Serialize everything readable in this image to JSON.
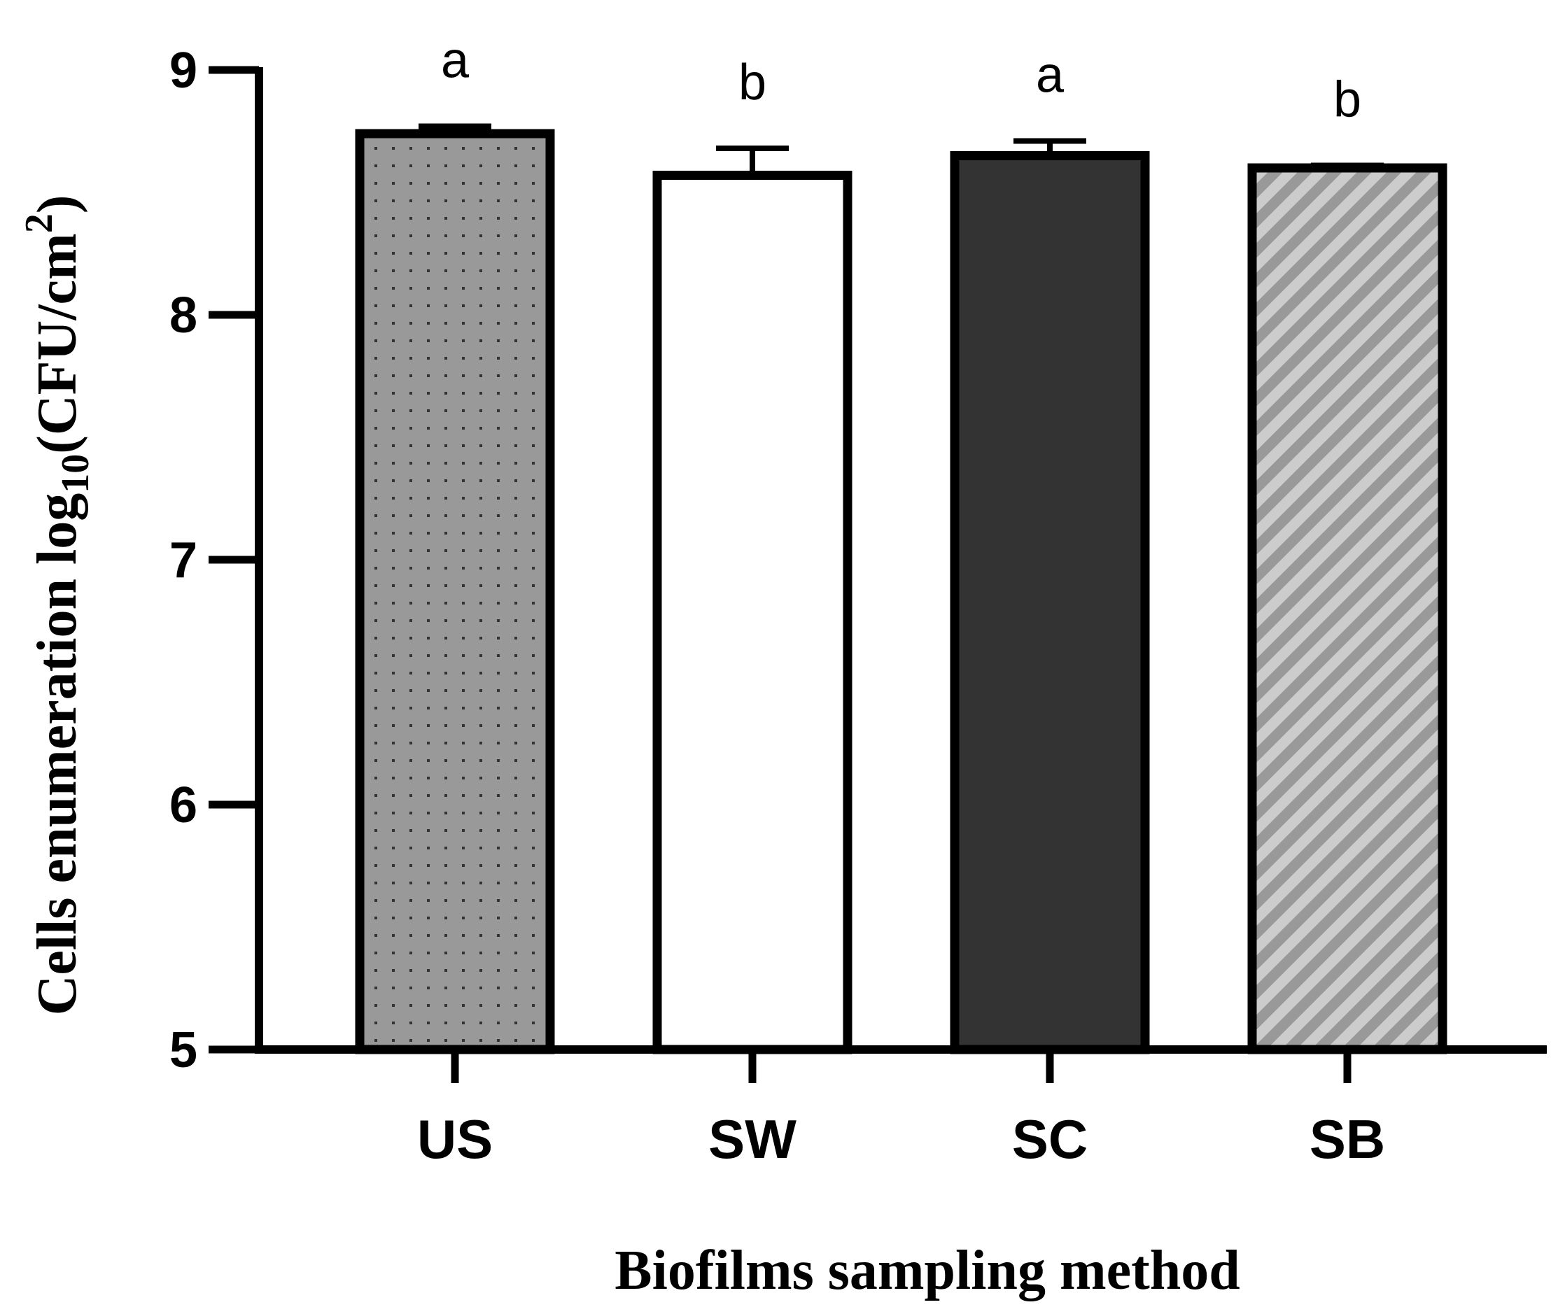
{
  "chart_data": {
    "type": "bar",
    "categories": [
      "US",
      "SW",
      "SC",
      "SB"
    ],
    "values": [
      8.74,
      8.57,
      8.65,
      8.6
    ],
    "error_upper": [
      8.77,
      8.68,
      8.71,
      8.61
    ],
    "significance_letters": [
      "a",
      "b",
      "a",
      "b"
    ],
    "xlabel": "Biofilms sampling method",
    "ylabel": {
      "prefix": "Cells enumeration log",
      "subscript": "10",
      "middle": "(CFU/cm",
      "superscript": "2",
      "suffix": ")"
    },
    "ylim": [
      5,
      9
    ],
    "yticks": [
      "5",
      "6",
      "7",
      "8",
      "9"
    ],
    "grid": false,
    "legend": "none",
    "fills": [
      {
        "pattern": "dots",
        "base": "#999999",
        "mark": "#333333"
      },
      {
        "pattern": "solid",
        "base": "#ffffff"
      },
      {
        "pattern": "solid",
        "base": "#333333"
      },
      {
        "pattern": "diagonal-stripes",
        "base": "#999999",
        "mark": "#cccccc"
      }
    ],
    "outline_color": "#000000"
  }
}
